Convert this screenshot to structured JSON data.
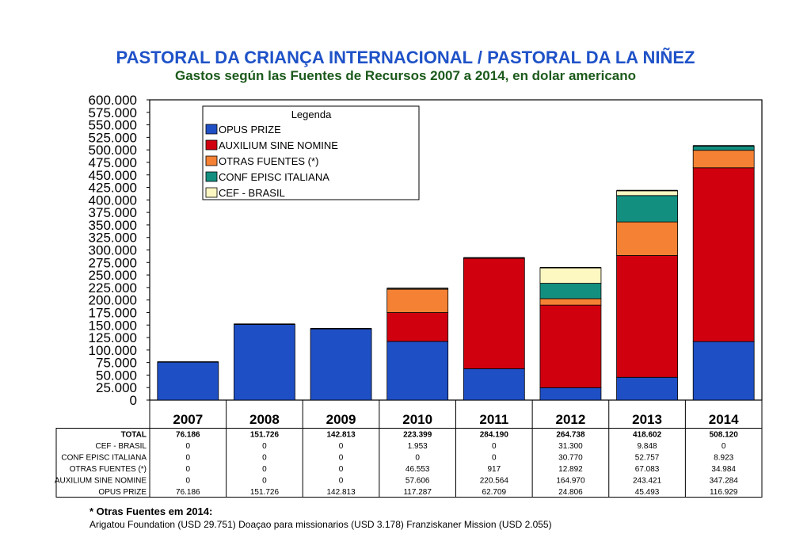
{
  "chart_data": {
    "type": "bar",
    "stacked": true,
    "title": "PASTORAL DA CRIANÇA INTERNACIONAL / PASTORAL DA LA NIÑEZ",
    "subtitle": "Gastos según las Fuentes de Recursos 2007 a 2014, en dolar americano",
    "categories": [
      "2007",
      "2008",
      "2009",
      "2010",
      "2011",
      "2012",
      "2013",
      "2014"
    ],
    "ylim": [
      0,
      600000
    ],
    "yticks": [
      0,
      25000,
      50000,
      75000,
      100000,
      125000,
      150000,
      175000,
      200000,
      225000,
      250000,
      275000,
      300000,
      325000,
      350000,
      375000,
      400000,
      425000,
      450000,
      475000,
      500000,
      525000,
      550000,
      575000,
      600000
    ],
    "ytick_labels": [
      "0",
      "25.000",
      "50.000",
      "75.000",
      "100.000",
      "125.000",
      "150.000",
      "175.000",
      "200.000",
      "225.000",
      "250.000",
      "275.000",
      "300.000",
      "325.000",
      "350.000",
      "375.000",
      "400.000",
      "425.000",
      "450.000",
      "475.000",
      "500.000",
      "525.000",
      "550.000",
      "575.000",
      "600.000"
    ],
    "legend_title": "Legenda",
    "legend_position": "top-left",
    "series": [
      {
        "name": "OPUS PRIZE",
        "color": "#1f4fc4",
        "values": [
          76186,
          151726,
          142813,
          117287,
          62709,
          24806,
          45493,
          116929
        ],
        "labels": [
          "76.186",
          "151.726",
          "142.813",
          "117.287",
          "62.709",
          "24.806",
          "45.493",
          "116.929"
        ]
      },
      {
        "name": "AUXILIUM SINE NOMINE",
        "color": "#d0000f",
        "values": [
          0,
          0,
          0,
          57606,
          220564,
          164970,
          243421,
          347284
        ],
        "labels": [
          "0",
          "0",
          "0",
          "57.606",
          "220.564",
          "164.970",
          "243.421",
          "347.284"
        ]
      },
      {
        "name": "OTRAS FUENTES (*)",
        "color": "#f58234",
        "values": [
          0,
          0,
          0,
          46553,
          917,
          12892,
          67083,
          34984
        ],
        "labels": [
          "0",
          "0",
          "0",
          "46.553",
          "917",
          "12.892",
          "67.083",
          "34.984"
        ]
      },
      {
        "name": "CONF EPISC ITALIANA",
        "color": "#138f80",
        "values": [
          0,
          0,
          0,
          0,
          0,
          30770,
          52757,
          8923
        ],
        "labels": [
          "0",
          "0",
          "0",
          "0",
          "0",
          "30.770",
          "52.757",
          "8.923"
        ]
      },
      {
        "name": "CEF - BRASIL",
        "color": "#fdf7c2",
        "values": [
          0,
          0,
          0,
          1953,
          0,
          31300,
          9848,
          0
        ],
        "labels": [
          "0",
          "0",
          "0",
          "1.953",
          "0",
          "31.300",
          "9.848",
          "0"
        ]
      }
    ],
    "table": {
      "rows_order": [
        "TOTAL",
        "CEF - BRASIL",
        "CONF EPISC ITALIANA",
        "OTRAS FUENTES (*)",
        "AUXILIUM SINE NOMINE",
        "OPUS PRIZE"
      ],
      "total_label": "TOTAL",
      "totals": [
        "76.186",
        "151.726",
        "142.813",
        "223.399",
        "284.190",
        "264.738",
        "418.602",
        "508.120"
      ]
    }
  },
  "footnote": {
    "title": "* Otras Fuentes em 2014:",
    "text": "Arigatou Foundation (USD 29.751) Doaçao para missionarios (USD 3.178) Franziskaner Mission (USD 2.055)"
  }
}
